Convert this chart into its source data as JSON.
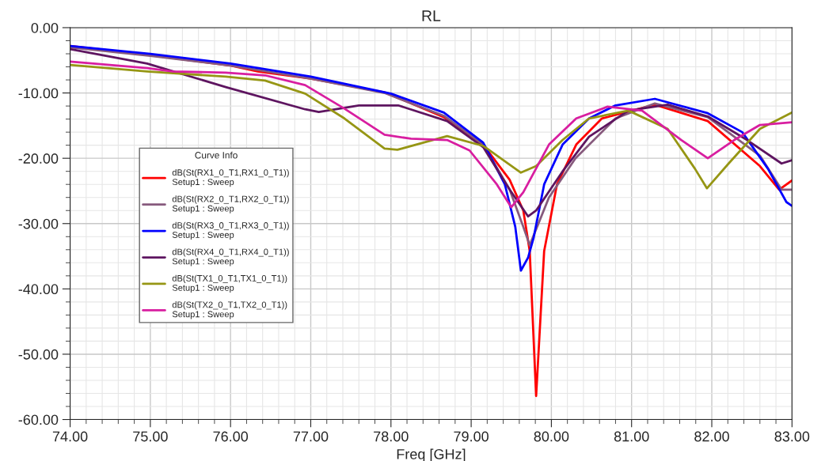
{
  "chart_data": {
    "type": "line",
    "title": "RL",
    "xlabel": "Freq [GHz]",
    "legend_title": "Curve Info",
    "legend": "center left",
    "grid": true,
    "marker": "none",
    "line_style": "solid",
    "xlim": [
      74,
      83
    ],
    "ylim": [
      -60,
      0
    ],
    "xticks": [
      {
        "value": 74,
        "label": "74.00"
      },
      {
        "value": 75,
        "label": "75.00"
      },
      {
        "value": 76,
        "label": "76.00"
      },
      {
        "value": 77,
        "label": "77.00"
      },
      {
        "value": 78,
        "label": "78.00"
      },
      {
        "value": 79,
        "label": "79.00"
      },
      {
        "value": 80,
        "label": "80.00"
      },
      {
        "value": 81,
        "label": "81.00"
      },
      {
        "value": 82,
        "label": "82.00"
      },
      {
        "value": 83,
        "label": "83.00"
      }
    ],
    "yticks": [
      {
        "value": -60,
        "label": "-60.00"
      },
      {
        "value": -50,
        "label": "-50.00"
      },
      {
        "value": -40,
        "label": "-40.00"
      },
      {
        "value": -30,
        "label": "-30.00"
      },
      {
        "value": -20,
        "label": "-20.00"
      },
      {
        "value": -10,
        "label": "-10.00"
      },
      {
        "value": 0,
        "label": "0.00"
      }
    ],
    "series": [
      {
        "name": "dB(St(RX1_0_T1,RX1_0_T1))\nSetup1 : Sweep",
        "color": "#ff0000",
        "x": [
          74,
          75,
          76,
          76.34,
          77,
          77.92,
          78.66,
          79.15,
          79.48,
          79.65,
          79.73,
          79.81,
          79.91,
          80.07,
          80.31,
          80.63,
          81.29,
          81.95,
          82.6,
          82.84,
          83
        ],
        "values": [
          -2.8,
          -4.2,
          -5.8,
          -6.7,
          -7.8,
          -9.9,
          -13.7,
          -17.9,
          -23.3,
          -28,
          -34.2,
          -56.4,
          -34.2,
          -24,
          -17.9,
          -13.9,
          -11.8,
          -14.3,
          -21.2,
          -24.8,
          -23.4
        ]
      },
      {
        "name": "dB(St(RX2_0_T1,RX2_0_T1))\nSetup1 : Sweep",
        "color": "#875a7d",
        "x": [
          74,
          75,
          76,
          77,
          77.92,
          78.66,
          79.15,
          79.48,
          79.65,
          79.73,
          79.97,
          80.3,
          80.8,
          81.29,
          81.95,
          82.6,
          82.87,
          83
        ],
        "values": [
          -3,
          -4.3,
          -5.8,
          -7.8,
          -10,
          -13.5,
          -17.9,
          -24.8,
          -30.5,
          -33.3,
          -26,
          -20,
          -13.9,
          -11.6,
          -13.7,
          -19.6,
          -24.8,
          -24.8
        ]
      },
      {
        "name": "dB(St(RX3_0_T1,RX3_0_T1))\nSetup1 : Sweep",
        "color": "#0000ff",
        "x": [
          74,
          75,
          76,
          77,
          78,
          78.66,
          79.15,
          79.42,
          79.55,
          79.62,
          79.71,
          79.78,
          79.91,
          80.14,
          80.47,
          80.8,
          81.29,
          81.95,
          82.38,
          82.7,
          82.93,
          83
        ],
        "values": [
          -2.8,
          -4.0,
          -5.5,
          -7.5,
          -10.1,
          -13,
          -17.6,
          -24,
          -30.5,
          -37.2,
          -35.2,
          -32.1,
          -24,
          -17.9,
          -13.9,
          -11.9,
          -10.9,
          -13.1,
          -16,
          -21.6,
          -26.7,
          -27.3
        ]
      },
      {
        "name": "dB(St(RX4_0_T1,RX4_0_T1))\nSetup1 : Sweep",
        "color": "#5e1560",
        "x": [
          74,
          74.96,
          75.94,
          76.93,
          77.1,
          77.6,
          78.09,
          78.7,
          79.15,
          79.48,
          79.71,
          79.81,
          80.14,
          80.47,
          80.96,
          81.45,
          81.95,
          82.44,
          82.87,
          83
        ],
        "values": [
          -3.3,
          -5.5,
          -9.1,
          -12.5,
          -12.9,
          -11.9,
          -11.9,
          -14.3,
          -18.3,
          -24.8,
          -28.9,
          -28,
          -22,
          -16.7,
          -12.7,
          -11.8,
          -13.6,
          -17.2,
          -20.8,
          -20.3
        ]
      },
      {
        "name": "dB(St(TX1_0_T1,TX1_0_T1))\nSetup1 : Sweep",
        "color": "#969614",
        "x": [
          74,
          74.96,
          75.94,
          76.43,
          76.93,
          77.42,
          77.92,
          78.08,
          78.7,
          79.15,
          79.62,
          79.81,
          80.14,
          80.47,
          80.96,
          81.45,
          81.79,
          81.94,
          82.21,
          82.6,
          83
        ],
        "values": [
          -5.7,
          -6.7,
          -7.5,
          -8.1,
          -10.1,
          -13.9,
          -18.5,
          -18.7,
          -16.6,
          -18.1,
          -22.2,
          -21.2,
          -17.2,
          -13.9,
          -12.7,
          -15.5,
          -21.6,
          -24.6,
          -20.8,
          -15.5,
          -13
        ]
      },
      {
        "name": "dB(St(TX2_0_T1,TX2_0_T1))\nSetup1 : Sweep",
        "color": "#d81ea0",
        "x": [
          74,
          74.96,
          75.28,
          75.94,
          76.43,
          76.93,
          77.42,
          77.92,
          78.25,
          78.7,
          78.98,
          79.32,
          79.5,
          79.65,
          79.97,
          80.31,
          80.7,
          81.13,
          81.62,
          81.95,
          82.28,
          82.6,
          83
        ],
        "values": [
          -5.2,
          -6.2,
          -6.7,
          -6.9,
          -7.3,
          -8.8,
          -12.4,
          -16.4,
          -17,
          -17.2,
          -18.8,
          -24,
          -27.5,
          -25.2,
          -17.9,
          -13.9,
          -12.1,
          -12.7,
          -17.2,
          -20,
          -17.2,
          -14.9,
          -14.5
        ]
      }
    ]
  }
}
